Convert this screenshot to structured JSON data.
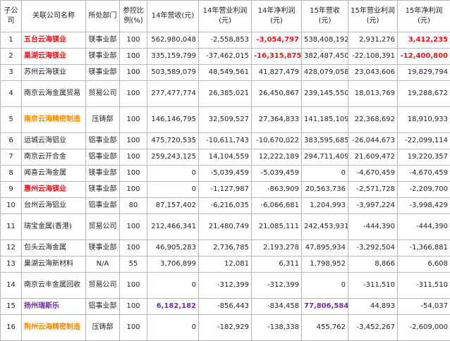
{
  "table": {
    "header": [
      "子公司",
      "关联公司名称",
      "所处部门",
      "参控比例(%)",
      "14年营收(元)",
      "14年营业利润(元)",
      "14年净利润(元)",
      "15年营收(元)",
      "15年营业利润(元)",
      "15年净利润(元)"
    ],
    "rows": [
      [
        "1",
        {
          "text": "五台云海镁业",
          "color": "#e8141b"
        },
        "镁事业部",
        "100",
        "562,980,048",
        "-2,558,853",
        {
          "text": "-3,054,797",
          "color": "#e8141b"
        },
        "538,408,192",
        "2,931,276",
        {
          "text": "3,412,235",
          "color": "#e8141b"
        }
      ],
      [
        "2",
        {
          "text": "巢湖云海镁业",
          "color": "#e8141b"
        },
        "镁事业部",
        "100",
        "335,159,799",
        "-37,462,015",
        {
          "text": "-16,315,875",
          "color": "#e8141b"
        },
        "382,487,450",
        "-22,108,391",
        {
          "text": "-12,400,800",
          "color": "#e8141b"
        }
      ],
      [
        "3",
        "苏州云海镁业",
        "镁事业部",
        "100",
        "503,589,079",
        "48,549,561",
        "41,827,479",
        "428,079,058",
        "23,043,606",
        "19,829,794"
      ],
      [
        "4",
        "南京云海金属贸易",
        "贸易公司",
        "100",
        "277,477,774",
        "26,385,021",
        "26,450,867",
        "239,145,550",
        "18,013,769",
        "19,288,672"
      ],
      [
        "5",
        {
          "text": "南京云海精密制造",
          "color": "#f08c00"
        },
        "压铸部",
        "100",
        "146,146,795",
        "32,509,527",
        "27,364,833",
        "141,185,109",
        "22,368,692",
        "18,910,933"
      ],
      [
        "6",
        "运城云海铝业",
        "铝事业部",
        "100",
        "475,720,535",
        "-10,611,743",
        "-10,670,022",
        "383,595,685",
        "-26,044,673",
        "-22,099,114"
      ],
      [
        "7",
        "南京云开合金",
        "铝事业部",
        "100",
        "259,243,125",
        "14,104,559",
        "12,222,189",
        "294,711,409",
        "21,609,472",
        "19,220,357"
      ],
      [
        "8",
        "闻喜云海金属",
        "镁事业部",
        "100",
        "0",
        "-5,039,459",
        "-5,039,459",
        "0",
        "-4,670,459",
        "-4,670,459"
      ],
      [
        "9",
        {
          "text": "惠州云海镁业",
          "color": "#e8141b"
        },
        "镁事业部",
        "100",
        "0",
        "-1,127,987",
        "-863,909",
        "20,563,736",
        "-2,571,728",
        "-2,209,700"
      ],
      [
        "10",
        "台州云海铝业",
        "铝事业部",
        "80",
        "87,157,402",
        "-6,216,035",
        "-6,066,681",
        "1,204,993",
        "-3,997,224",
        "-3,998,429"
      ],
      [
        "11",
        "瑞宝金属(香港)",
        "贸易公司",
        "100",
        "212,466,341",
        "21,480,749",
        "21,085,111",
        "242,453,931",
        "-444,390",
        "-444,390"
      ],
      [
        "12",
        "包头云海金属",
        "镁事业部",
        "100",
        "46,905,283",
        "2,736,785",
        "2,193,278",
        "47,895,934",
        "-3,292,504",
        "-1,366,881"
      ],
      [
        "13",
        "巢湖云海新材料",
        "N/A",
        "55",
        "3,706,899",
        "12,081",
        "6,311",
        "1,798,952",
        "8,866",
        "6,608"
      ],
      [
        "14",
        "南京云丰金属回收",
        "贸易公司",
        "100",
        "0",
        "-312,399",
        "-312,399",
        "0",
        "-311,510",
        "-311,510"
      ],
      [
        "15",
        {
          "text": "扬州瑞斯乐",
          "color": "#7030a0"
        },
        "铝事业部",
        "100",
        {
          "text": "6,182,182",
          "color": "#7030a0"
        },
        "-856,443",
        "-834,458",
        {
          "text": "77,806,584",
          "color": "#7030a0"
        },
        "44,893",
        "-54,037"
      ],
      [
        "16",
        {
          "text": "荆州云海精密制造",
          "color": "#f08c00"
        },
        "压铸部",
        "100",
        "0",
        "-182,929",
        "-138,338",
        "455,762",
        "-3,452,267",
        "-2,609,000"
      ]
    ]
  }
}
